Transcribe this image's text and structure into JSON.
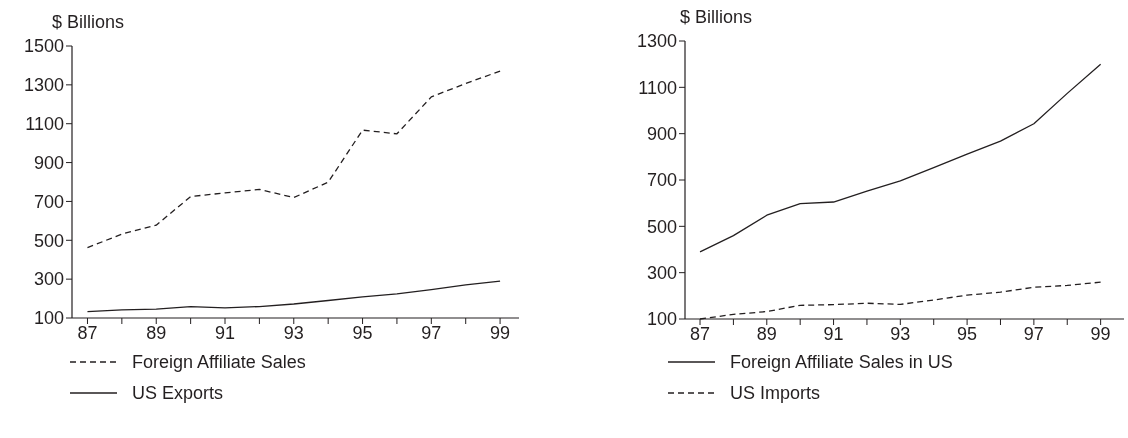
{
  "chart_data": [
    {
      "type": "line",
      "ylabel": "$ Billions",
      "x": [
        87,
        88,
        89,
        90,
        91,
        92,
        93,
        94,
        95,
        96,
        97,
        98,
        99
      ],
      "xlim": [
        86.55,
        99.55
      ],
      "xticks": [
        87,
        {
          "value": 88,
          "label": null
        },
        89,
        {
          "value": 90,
          "label": null
        },
        91,
        {
          "value": 92,
          "label": null
        },
        93,
        {
          "value": 94,
          "label": null
        },
        95,
        {
          "value": 96,
          "label": null
        },
        97,
        {
          "value": 98,
          "label": null
        },
        99
      ],
      "ylim": [
        100,
        1500
      ],
      "yticks": [
        100,
        300,
        500,
        700,
        900,
        1100,
        1300,
        1500
      ],
      "grid": false,
      "legend": "bottom",
      "marker": "none",
      "series": [
        {
          "name": "Foreign Affiliate Sales",
          "color": "#231f20",
          "line_style": "dashed",
          "values": [
            462,
            532,
            578,
            725,
            744,
            762,
            720,
            799,
            1067,
            1048,
            1238,
            1307,
            1371
          ]
        },
        {
          "name": "US Exports",
          "color": "#231f20",
          "line_style": "solid",
          "values": [
            133,
            142,
            146,
            159,
            152,
            159,
            172,
            190,
            209,
            224,
            246,
            270,
            290
          ]
        }
      ]
    },
    {
      "type": "line",
      "ylabel": "$ Billions",
      "x": [
        87,
        88,
        89,
        90,
        91,
        92,
        93,
        94,
        95,
        96,
        97,
        98,
        99
      ],
      "xlim": [
        86.55,
        99.7
      ],
      "xticks": [
        87,
        {
          "value": 88,
          "label": null
        },
        89,
        {
          "value": 90,
          "label": null
        },
        91,
        {
          "value": 92,
          "label": null
        },
        93,
        {
          "value": 94,
          "label": null
        },
        95,
        {
          "value": 96,
          "label": null
        },
        97,
        {
          "value": 98,
          "label": null
        },
        99
      ],
      "ylim": [
        100,
        1300
      ],
      "yticks": [
        100,
        300,
        500,
        700,
        900,
        1100,
        1300
      ],
      "grid": false,
      "legend": "bottom",
      "marker": "none",
      "series": [
        {
          "name": "Foreign Affiliate Sales in US",
          "color": "#231f20",
          "line_style": "solid",
          "values": [
            390,
            460,
            548,
            598,
            605,
            652,
            696,
            753,
            812,
            868,
            943,
            1074,
            1200
          ]
        },
        {
          "name": "US Imports",
          "color": "#231f20",
          "line_style": "dashed",
          "values": [
            100,
            120,
            132,
            159,
            162,
            168,
            163,
            182,
            203,
            216,
            237,
            245,
            259
          ]
        }
      ]
    }
  ]
}
